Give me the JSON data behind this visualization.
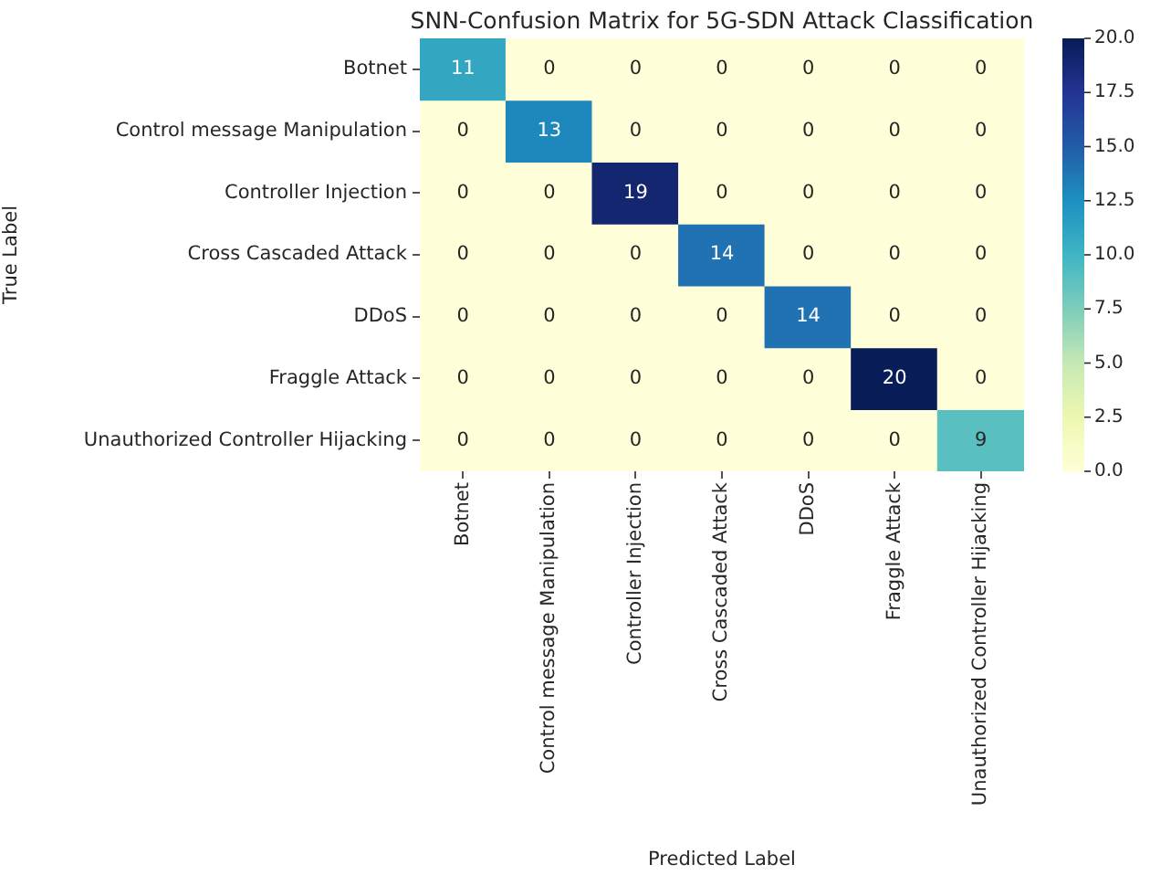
{
  "chart_data": {
    "type": "heatmap",
    "title": "SNN-Confusion Matrix for 5G-SDN Attack Classification",
    "xlabel": "Predicted Label",
    "ylabel": "True Label",
    "categories": [
      "Botnet",
      "Control message Manipulation",
      "Controller Injection",
      "Cross Cascaded Attack",
      "DDoS",
      "Fraggle Attack",
      "Unauthorized Controller Hijacking"
    ],
    "y_categories": [
      "Botnet",
      "Control message Manipulation",
      "Controller Injection",
      "Cross Cascaded Attack",
      "DDoS",
      "Fraggle Attack",
      "Unauthorized Controller Hijacking"
    ],
    "cells": [
      [
        11,
        0,
        0,
        0,
        0,
        0,
        0
      ],
      [
        0,
        13,
        0,
        0,
        0,
        0,
        0
      ],
      [
        0,
        0,
        19,
        0,
        0,
        0,
        0
      ],
      [
        0,
        0,
        0,
        14,
        0,
        0,
        0
      ],
      [
        0,
        0,
        0,
        0,
        14,
        0,
        0
      ],
      [
        0,
        0,
        0,
        0,
        0,
        20,
        0
      ],
      [
        0,
        0,
        0,
        0,
        0,
        0,
        9
      ]
    ],
    "clim": [
      0,
      20
    ],
    "cticks": [
      {
        "value": 0,
        "label": "0.0"
      },
      2.5,
      {
        "value": 5,
        "label": "5.0"
      },
      7.5,
      {
        "value": 10,
        "label": "10.0"
      },
      12.5,
      {
        "value": 15,
        "label": "15.0"
      },
      17.5,
      {
        "value": 20,
        "label": "20.0"
      }
    ],
    "data_labels": true
  }
}
